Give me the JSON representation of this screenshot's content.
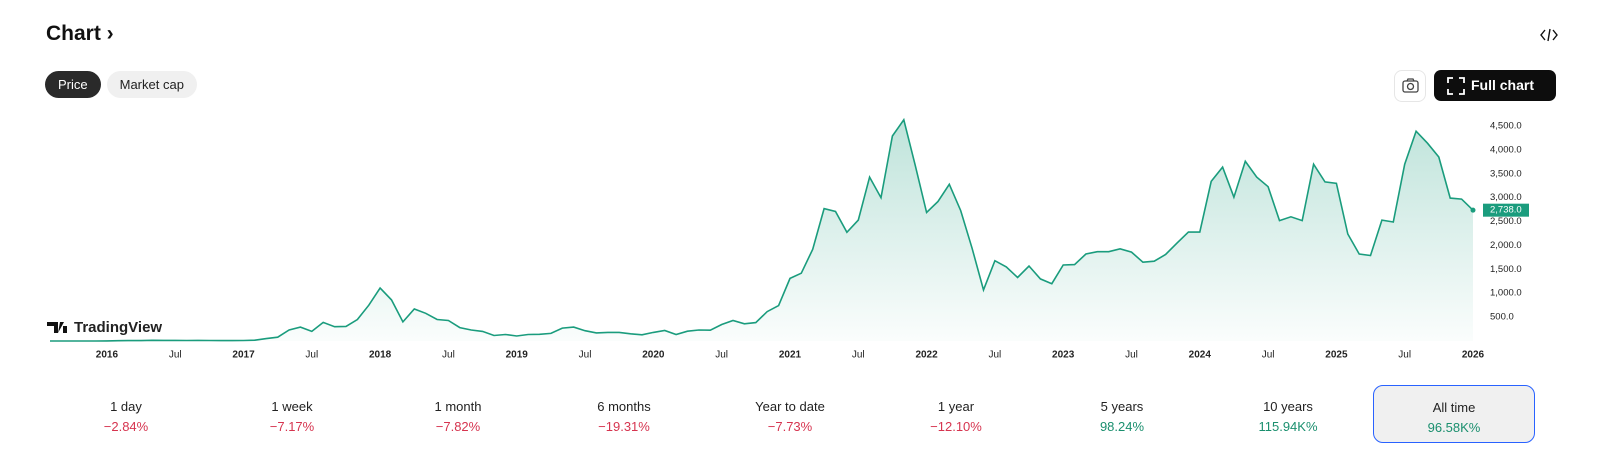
{
  "header": {
    "title": "Chart"
  },
  "tabs": [
    {
      "label": "Price",
      "selected": true
    },
    {
      "label": "Market cap",
      "selected": false
    }
  ],
  "buttons": {
    "full_chart": "Full chart"
  },
  "watermark": "TradingView",
  "chart_data": {
    "type": "line",
    "color": "#1a9c7d",
    "x": [
      "2015-08",
      "2015-09",
      "2015-10",
      "2015-11",
      "2015-12",
      "2016-01",
      "2016-02",
      "2016-03",
      "2016-04",
      "2016-05",
      "2016-06",
      "2016-07",
      "2016-08",
      "2016-09",
      "2016-10",
      "2016-11",
      "2016-12",
      "2017-01",
      "2017-02",
      "2017-03",
      "2017-04",
      "2017-05",
      "2017-06",
      "2017-07",
      "2017-08",
      "2017-09",
      "2017-10",
      "2017-11",
      "2017-12",
      "2018-01",
      "2018-02",
      "2018-03",
      "2018-04",
      "2018-05",
      "2018-06",
      "2018-07",
      "2018-08",
      "2018-09",
      "2018-10",
      "2018-11",
      "2018-12",
      "2019-01",
      "2019-02",
      "2019-03",
      "2019-04",
      "2019-05",
      "2019-06",
      "2019-07",
      "2019-08",
      "2019-09",
      "2019-10",
      "2019-11",
      "2019-12",
      "2020-01",
      "2020-02",
      "2020-03",
      "2020-04",
      "2020-05",
      "2020-06",
      "2020-07",
      "2020-08",
      "2020-09",
      "2020-10",
      "2020-11",
      "2020-12",
      "2021-01",
      "2021-02",
      "2021-03",
      "2021-04",
      "2021-05",
      "2021-06",
      "2021-07",
      "2021-08",
      "2021-09",
      "2021-10",
      "2021-11",
      "2021-12",
      "2022-01",
      "2022-02",
      "2022-03",
      "2022-04",
      "2022-05",
      "2022-06",
      "2022-07",
      "2022-08",
      "2022-09",
      "2022-10",
      "2022-11",
      "2022-12",
      "2023-01",
      "2023-02",
      "2023-03",
      "2023-04",
      "2023-05",
      "2023-06",
      "2023-07",
      "2023-08",
      "2023-09",
      "2023-10",
      "2023-11",
      "2023-12",
      "2024-01",
      "2024-02",
      "2024-03",
      "2024-04",
      "2024-05",
      "2024-06",
      "2024-07",
      "2024-08",
      "2024-09",
      "2024-10",
      "2024-11",
      "2024-12",
      "2025-01",
      "2025-02",
      "2025-03",
      "2025-04",
      "2025-05",
      "2025-06",
      "2025-07",
      "2025-08",
      "2025-09",
      "2025-10",
      "2025-11",
      "2025-12",
      "2026-01"
    ],
    "values": [
      1,
      1,
      1,
      1,
      1,
      2,
      6,
      11,
      9,
      14,
      12,
      12,
      11,
      13,
      11,
      9,
      8,
      11,
      16,
      50,
      80,
      230,
      290,
      200,
      390,
      300,
      305,
      450,
      750,
      1110,
      860,
      400,
      670,
      580,
      450,
      430,
      280,
      230,
      200,
      115,
      135,
      105,
      135,
      140,
      160,
      270,
      290,
      215,
      170,
      180,
      180,
      150,
      130,
      180,
      220,
      135,
      205,
      230,
      225,
      345,
      430,
      360,
      385,
      615,
      740,
      1310,
      1420,
      1920,
      2770,
      2710,
      2275,
      2530,
      3430,
      3000,
      4290,
      4630,
      3680,
      2690,
      2920,
      3280,
      2730,
      1940,
      1070,
      1680,
      1550,
      1330,
      1570,
      1300,
      1200,
      1590,
      1600,
      1820,
      1870,
      1870,
      1930,
      1860,
      1650,
      1670,
      1810,
      2050,
      2280,
      2280,
      3340,
      3640,
      3010,
      3760,
      3430,
      3230,
      2520,
      2600,
      2520,
      3700,
      3330,
      3300,
      2240,
      1820,
      1790,
      2530,
      2490,
      3700,
      4390,
      4140,
      3850,
      2990,
      2970,
      2738
    ],
    "xlim": [
      "2015-08",
      "2026-01"
    ],
    "xticks": [
      {
        "value": "2016-01",
        "label": "2016"
      },
      {
        "value": "2016-07",
        "label": "Jul"
      },
      {
        "value": "2017-01",
        "label": "2017"
      },
      {
        "value": "2017-07",
        "label": "Jul"
      },
      {
        "value": "2018-01",
        "label": "2018"
      },
      {
        "value": "2018-07",
        "label": "Jul"
      },
      {
        "value": "2019-01",
        "label": "2019"
      },
      {
        "value": "2019-07",
        "label": "Jul"
      },
      {
        "value": "2020-01",
        "label": "2020"
      },
      {
        "value": "2020-07",
        "label": "Jul"
      },
      {
        "value": "2021-01",
        "label": "2021"
      },
      {
        "value": "2021-07",
        "label": "Jul"
      },
      {
        "value": "2022-01",
        "label": "2022"
      },
      {
        "value": "2022-07",
        "label": "Jul"
      },
      {
        "value": "2023-01",
        "label": "2023"
      },
      {
        "value": "2023-07",
        "label": "Jul"
      },
      {
        "value": "2024-01",
        "label": "2024"
      },
      {
        "value": "2024-07",
        "label": "Jul"
      },
      {
        "value": "2025-01",
        "label": "2025"
      },
      {
        "value": "2025-07",
        "label": "Jul"
      },
      {
        "value": "2026-01",
        "label": "2026"
      }
    ],
    "ylim": [
      0,
      4730
    ],
    "yticks": [
      {
        "value": 500,
        "label": "500.0"
      },
      {
        "value": 1000,
        "label": "1,000.0"
      },
      {
        "value": 1500,
        "label": "1,500.0"
      },
      {
        "value": 2000,
        "label": "2,000.0"
      },
      {
        "value": 2500,
        "label": "2,500.0"
      },
      {
        "value": 3000,
        "label": "3,000.0"
      },
      {
        "value": 3500,
        "label": "3,500.0"
      },
      {
        "value": 4000,
        "label": "4,000.0"
      },
      {
        "value": 4500,
        "label": "4,500.0"
      }
    ],
    "last_price": {
      "value": 2738,
      "label": "2,738.0"
    }
  },
  "periods": [
    {
      "label": "1 day",
      "change": "−2.84%",
      "color": "#d6344f",
      "selected": false
    },
    {
      "label": "1 week",
      "change": "−7.17%",
      "color": "#d6344f",
      "selected": false
    },
    {
      "label": "1 month",
      "change": "−7.82%",
      "color": "#d6344f",
      "selected": false
    },
    {
      "label": "6 months",
      "change": "−19.31%",
      "color": "#d6344f",
      "selected": false
    },
    {
      "label": "Year to date",
      "change": "−7.73%",
      "color": "#d6344f",
      "selected": false
    },
    {
      "label": "1 year",
      "change": "−12.10%",
      "color": "#d6344f",
      "selected": false
    },
    {
      "label": "5 years",
      "change": "98.24%",
      "color": "#1a8f6e",
      "selected": false
    },
    {
      "label": "10 years",
      "change": "115.94K%",
      "color": "#1a8f6e",
      "selected": false
    },
    {
      "label": "All time",
      "change": "96.58K%",
      "color": "#1a8f6e",
      "selected": true
    }
  ]
}
